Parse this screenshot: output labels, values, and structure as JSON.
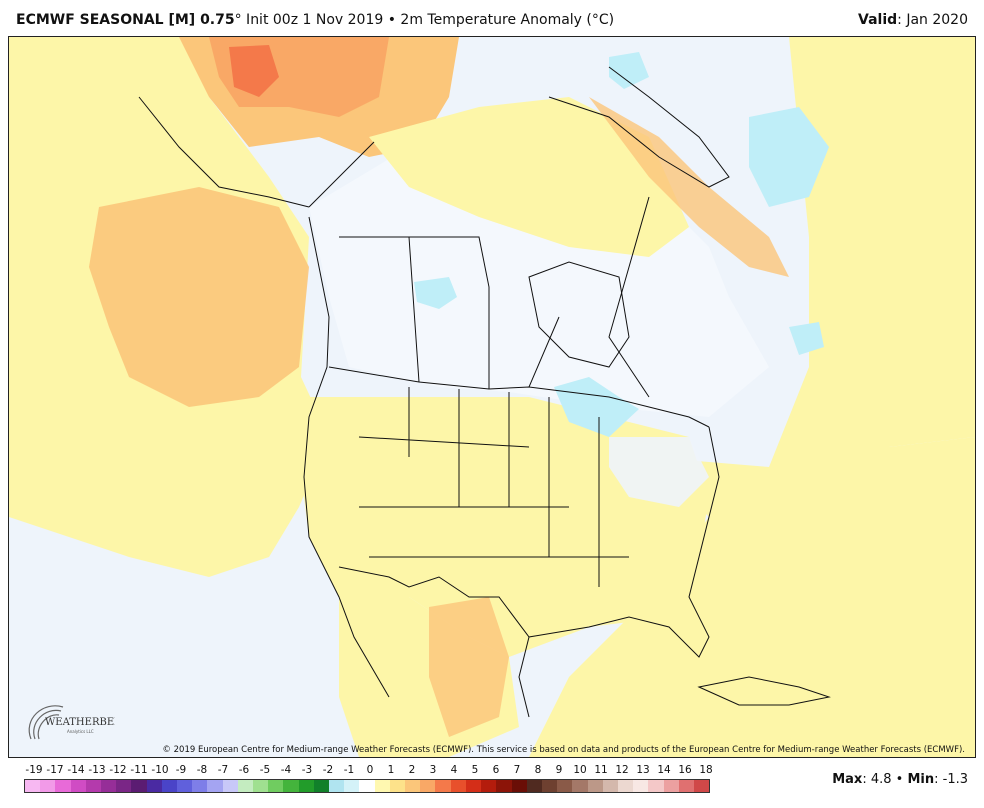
{
  "header": {
    "title_bold": "ECMWF SEASONAL [M] 0.75",
    "title_rest": "° Init 00z 1 Nov 2019 • 2m Temperature Anomaly (°C)",
    "valid_label": "Valid",
    "valid_value": ": Jan 2020"
  },
  "map": {
    "region": "North America",
    "variable": "2m Temperature Anomaly",
    "copyright": "© 2019 European Centre for Medium-range Weather Forecasts (ECMWF). This service is based on data and products of the European Centre for Medium-range Weather Forecasts (ECMWF).",
    "logo_text": "WEATHERBELL",
    "logo_sub": "Analytics LLC",
    "colors": {
      "ocean": "#eef4fb",
      "land_neutral": "#f4f8fd",
      "warm_0_1": "#fdf6a8",
      "warm_1_2": "#fde28a",
      "warm_2_3": "#fbc67a",
      "warm_3_4": "#f9a866",
      "warm_4_5": "#f4794a",
      "cool_0_1": "#bfeef8",
      "border": "#111111"
    }
  },
  "legend": {
    "ticks": [
      "-19",
      "-17",
      "-14",
      "-13",
      "-12",
      "-11",
      "-10",
      "-9",
      "-8",
      "-7",
      "-6",
      "-5",
      "-4",
      "-3",
      "-2",
      "-1",
      "0",
      "1",
      "2",
      "3",
      "4",
      "5",
      "6",
      "7",
      "8",
      "9",
      "10",
      "11",
      "12",
      "13",
      "14",
      "16",
      "18"
    ],
    "colors": [
      "#f7b8f2",
      "#f29ae8",
      "#e86ad8",
      "#d04cc4",
      "#b43aac",
      "#962e98",
      "#7a2686",
      "#5b1c72",
      "#4a2aa2",
      "#4a44c8",
      "#6060dc",
      "#7e7ee8",
      "#a4a4f2",
      "#c8c8f8",
      "#c4ecc0",
      "#a0e090",
      "#70cc60",
      "#44b43c",
      "#229c2a",
      "#11802a",
      "#b0e4f0",
      "#d4f2f8",
      "#ffffff",
      "#fff8b0",
      "#fde28a",
      "#fbc67a",
      "#f9a866",
      "#f4794a",
      "#e8502c",
      "#d42e18",
      "#b41c0c",
      "#8c1408",
      "#6a0e06",
      "#502a20",
      "#6e4030",
      "#8a5a48",
      "#a47868",
      "#bc9888",
      "#d4b8ac",
      "#ecd8d0",
      "#f8e8e4",
      "#f4c8c8",
      "#eca0a0",
      "#e07070",
      "#d04848"
    ]
  },
  "stats": {
    "max_label": "Max",
    "max_value": ": 4.8 • ",
    "min_label": "Min",
    "min_value": ": -1.3"
  }
}
